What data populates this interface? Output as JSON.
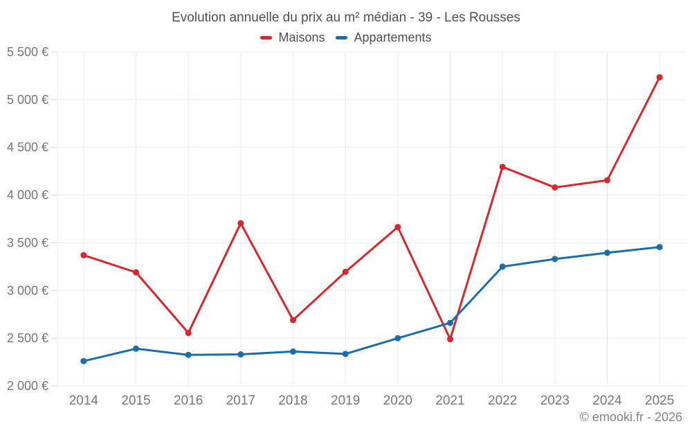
{
  "title": "Evolution annuelle du prix au m² médian - 39 - Les Rousses",
  "footer": "© emooki.fr - 2026",
  "colors": {
    "maisons": "#d8262c",
    "appartements": "#1a6da8",
    "grid": "#ebebeb",
    "tick": "#d6d6d6",
    "axis_text": "#767676",
    "title_text": "#4f4f4f",
    "footer_text": "#848484",
    "background": "#ffffff"
  },
  "chart_data": {
    "type": "line",
    "title": "Evolution annuelle du prix au m² médian - 39 - Les Rousses",
    "xlabel": "",
    "ylabel": "",
    "categories": [
      "2014",
      "2015",
      "2016",
      "2017",
      "2018",
      "2019",
      "2020",
      "2021",
      "2022",
      "2023",
      "2024",
      "2025"
    ],
    "series": [
      {
        "name": "Maisons",
        "color": "#d8262c",
        "values": [
          3370,
          3190,
          2555,
          3705,
          2690,
          3195,
          3665,
          2490,
          4295,
          4080,
          4155,
          5235
        ]
      },
      {
        "name": "Appartements",
        "color": "#1a6da8",
        "values": [
          2260,
          2390,
          2325,
          2330,
          2360,
          2335,
          2500,
          2660,
          3250,
          3330,
          3395,
          3455
        ]
      }
    ],
    "ylim": [
      2000,
      5500
    ],
    "ytick_step": 500,
    "ytick_labels": [
      "2 000 €",
      "2 500 €",
      "3 000 €",
      "3 500 €",
      "4 000 €",
      "4 500 €",
      "5 000 €",
      "5 500 €"
    ],
    "grid": true,
    "legend_position": "top"
  }
}
